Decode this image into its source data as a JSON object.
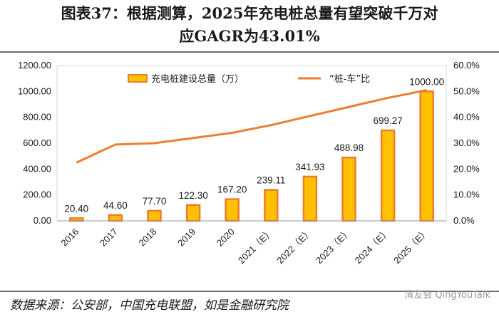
{
  "title": {
    "line1": "图表37：根据测算，2025年充电桩总量有望突破千万对",
    "line2": "应GAGR为43.01%"
  },
  "source": "数据来源：公安部，中国充电联盟，如是金融研究院",
  "watermark": "清友会 QingYouTalk",
  "colors": {
    "bar_fill": "#FFC000",
    "bar_edge": "#ED7D31",
    "line": "#ED7D31"
  },
  "chart_data": {
    "type": "bar+line",
    "categories": [
      "2016",
      "2017",
      "2018",
      "2019",
      "2020",
      "2021（E）",
      "2022（E）",
      "2023（E）",
      "2024（E）",
      "2025（E）"
    ],
    "series": [
      {
        "name": "充电桩建设总量（万）",
        "type": "bar",
        "axis": "left",
        "values": [
          20.4,
          44.6,
          77.7,
          122.3,
          167.2,
          239.11,
          341.93,
          488.98,
          699.27,
          1000.0
        ],
        "labels": [
          "20.40",
          "44.60",
          "77.70",
          "122.30",
          "167.20",
          "239.11",
          "341.93",
          "488.98",
          "699.27",
          "1000.00"
        ]
      },
      {
        "name": "“桩-车”比",
        "type": "line",
        "axis": "right",
        "values": [
          22.5,
          29.5,
          30.0,
          32.0,
          34.0,
          37.0,
          40.5,
          44.0,
          47.5,
          50.5
        ]
      }
    ],
    "y_left": {
      "min": 0,
      "max": 1200,
      "step": 200,
      "tick_labels": [
        "0.00",
        "200.00",
        "400.00",
        "600.00",
        "800.00",
        "1000.00",
        "1200.00"
      ]
    },
    "y_right": {
      "min": 0,
      "max": 60,
      "step": 10,
      "tick_labels": [
        "0.0%",
        "10.0%",
        "20.0%",
        "30.0%",
        "40.0%",
        "50.0%",
        "60.0%"
      ]
    },
    "legend": [
      "充电桩建设总量（万）",
      "“桩-车”比"
    ],
    "legend_position": "top"
  }
}
